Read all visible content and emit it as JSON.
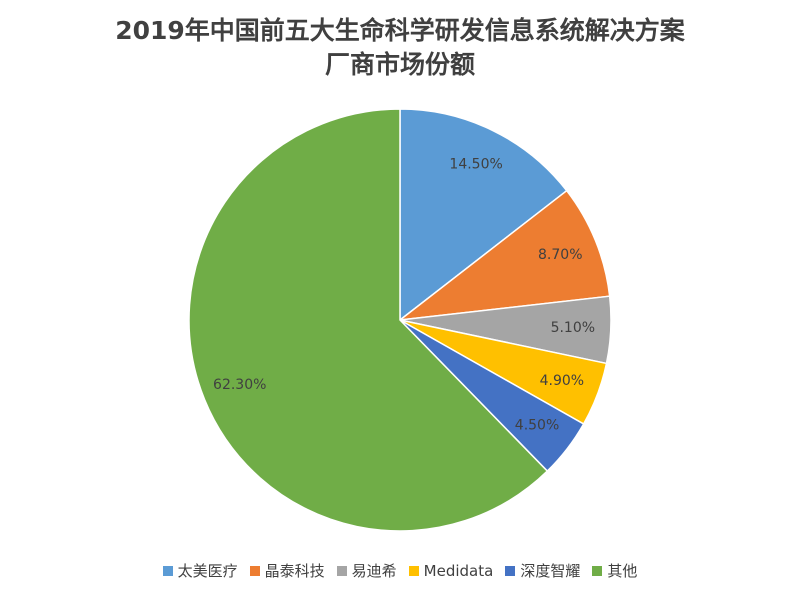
{
  "chart_data": {
    "type": "pie",
    "title": [
      "2019年中国前五大生命科学研发信息系统解决方案",
      "厂商市场份额"
    ],
    "categories": [
      "太美医疗",
      "晶泰科技",
      "易迪希",
      "Medidata",
      "深度智耀",
      "其他"
    ],
    "values": [
      14.5,
      8.7,
      5.1,
      4.9,
      4.5,
      62.3
    ],
    "value_labels": [
      "14.50%",
      "8.70%",
      "5.10%",
      "4.90%",
      "4.50%",
      "62.30%"
    ],
    "colors": [
      "#5b9bd5",
      "#ed7d31",
      "#a5a5a5",
      "#ffc000",
      "#4472c4",
      "#70ad47"
    ],
    "legend": "bottom"
  }
}
